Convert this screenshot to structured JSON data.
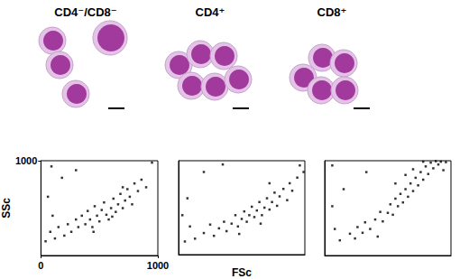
{
  "chart_data": [
    {
      "type": "scatter",
      "title": "CD4⁻/CD8⁻",
      "ylabel": "SSc",
      "color": "#000000",
      "marker": "square",
      "xlim": [
        0,
        1000
      ],
      "ylim": [
        0,
        1000
      ],
      "xticks": [
        0,
        1000
      ],
      "yticks": [
        1000
      ],
      "x": [
        120,
        150,
        100,
        80,
        200,
        230,
        260,
        300,
        320,
        350,
        380,
        400,
        420,
        440,
        460,
        480,
        500,
        520,
        540,
        560,
        580,
        600,
        620,
        640,
        660,
        680,
        700,
        720,
        740,
        760,
        780,
        800,
        830,
        860,
        900,
        60,
        180,
        300,
        90,
        950,
        40,
        450,
        610,
        700
      ],
      "y": [
        180,
        300,
        420,
        250,
        210,
        330,
        250,
        380,
        300,
        420,
        330,
        470,
        380,
        300,
        520,
        420,
        360,
        480,
        560,
        430,
        380,
        500,
        600,
        460,
        540,
        650,
        500,
        580,
        700,
        620,
        540,
        760,
        680,
        800,
        720,
        620,
        820,
        900,
        940,
        980,
        150,
        250,
        410,
        720
      ]
    },
    {
      "type": "scatter",
      "title": "CD4⁺",
      "xlabel": "FSc",
      "color": "#000000",
      "marker": "square",
      "tick_labels": false,
      "xlim": [
        0,
        1000
      ],
      "ylim": [
        0,
        1000
      ],
      "x": [
        130,
        90,
        200,
        250,
        280,
        320,
        360,
        380,
        420,
        450,
        470,
        500,
        520,
        540,
        560,
        580,
        600,
        620,
        640,
        660,
        680,
        700,
        720,
        740,
        760,
        780,
        800,
        830,
        860,
        880,
        900,
        940,
        70,
        200,
        350,
        960,
        50,
        480,
        650,
        720,
        990,
        30
      ],
      "y": [
        170,
        300,
        230,
        320,
        200,
        280,
        350,
        250,
        330,
        420,
        300,
        380,
        460,
        350,
        420,
        510,
        400,
        470,
        560,
        420,
        500,
        600,
        480,
        560,
        660,
        520,
        620,
        700,
        580,
        760,
        680,
        820,
        600,
        880,
        960,
        950,
        140,
        220,
        330,
        760,
        880,
        420
      ]
    },
    {
      "type": "scatter",
      "title": "CD8⁺",
      "color": "#000000",
      "marker": "square",
      "tick_labels": false,
      "xlim": [
        0,
        1000
      ],
      "ylim": [
        0,
        1000
      ],
      "x": [
        120,
        80,
        60,
        200,
        240,
        260,
        300,
        320,
        360,
        400,
        440,
        460,
        500,
        520,
        540,
        560,
        580,
        600,
        620,
        640,
        660,
        680,
        700,
        720,
        740,
        760,
        780,
        800,
        820,
        840,
        860,
        880,
        900,
        920,
        940,
        960,
        640,
        560,
        700,
        780,
        150,
        330,
        60,
        420
      ],
      "y": [
        160,
        280,
        520,
        230,
        180,
        300,
        240,
        350,
        280,
        380,
        460,
        360,
        450,
        540,
        430,
        600,
        520,
        650,
        560,
        700,
        620,
        760,
        680,
        820,
        740,
        880,
        800,
        940,
        860,
        980,
        920,
        995,
        960,
        990,
        900,
        985,
        850,
        760,
        910,
        990,
        700,
        880,
        950,
        200
      ]
    }
  ]
}
